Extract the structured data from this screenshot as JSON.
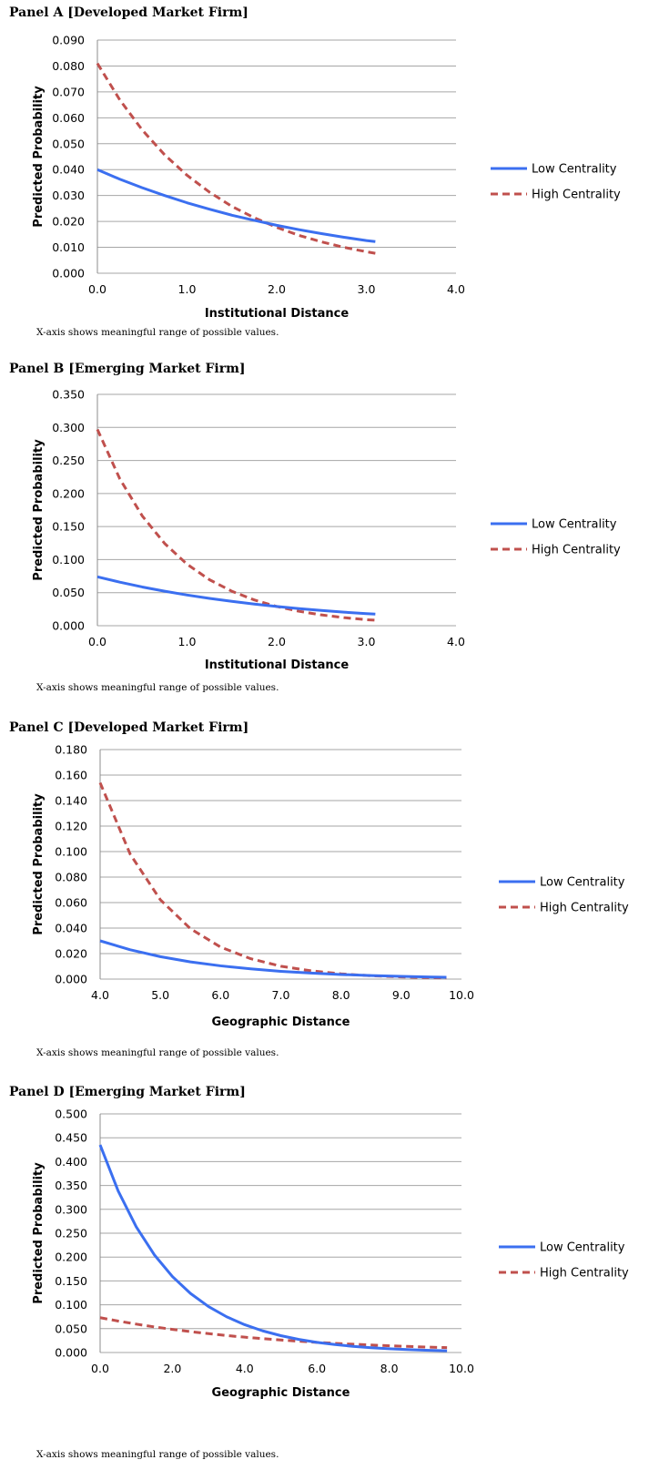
{
  "colors": {
    "low": "#3b6ff0",
    "high": "#c0504d",
    "grid": "#a6a6a6"
  },
  "chart_data": [
    {
      "type": "line",
      "title": "Panel A [Developed Market Firm]",
      "xlabel": "Institutional Distance",
      "ylabel": "Predicted Probability",
      "note": "X-axis shows meaningful range of possible values.",
      "xlim": [
        0,
        4
      ],
      "ylim": [
        0,
        0.09
      ],
      "xticks": [
        "0.0",
        "1.0",
        "2.0",
        "3.0",
        "4.0"
      ],
      "yticks": [
        "0.000",
        "0.010",
        "0.020",
        "0.030",
        "0.040",
        "0.050",
        "0.060",
        "0.070",
        "0.080",
        "0.090"
      ],
      "legend_position": "right",
      "series": [
        {
          "name": "Low Centrality",
          "style": "solid",
          "x": [
            0.0,
            0.25,
            0.5,
            0.75,
            1.0,
            1.25,
            1.5,
            1.75,
            2.0,
            2.25,
            2.5,
            2.75,
            3.0,
            3.1
          ],
          "y": [
            0.04,
            0.0363,
            0.033,
            0.03,
            0.0272,
            0.0247,
            0.0224,
            0.0204,
            0.0185,
            0.0168,
            0.0153,
            0.0139,
            0.0126,
            0.0122
          ]
        },
        {
          "name": "High Centrality",
          "style": "dashed",
          "x": [
            0.0,
            0.25,
            0.5,
            0.75,
            1.0,
            1.25,
            1.5,
            1.75,
            2.0,
            2.25,
            2.5,
            2.75,
            3.0,
            3.1
          ],
          "y": [
            0.081,
            0.0669,
            0.0553,
            0.0457,
            0.0378,
            0.0313,
            0.0258,
            0.0214,
            0.0177,
            0.0146,
            0.0121,
            0.01,
            0.0083,
            0.0077
          ]
        }
      ]
    },
    {
      "type": "line",
      "title": "Panel B [Emerging Market Firm]",
      "xlabel": "Institutional Distance",
      "ylabel": "Predicted Probability",
      "note": "X-axis shows meaningful range of possible values.",
      "xlim": [
        0,
        4
      ],
      "ylim": [
        0,
        0.35
      ],
      "xticks": [
        "0.0",
        "1.0",
        "2.0",
        "3.0",
        "4.0"
      ],
      "yticks": [
        "0.000",
        "0.050",
        "0.100",
        "0.150",
        "0.200",
        "0.250",
        "0.300",
        "0.350"
      ],
      "legend_position": "right",
      "series": [
        {
          "name": "Low Centrality",
          "style": "solid",
          "x": [
            0.0,
            0.25,
            0.5,
            0.75,
            1.0,
            1.25,
            1.5,
            1.75,
            2.0,
            2.25,
            2.5,
            2.75,
            3.0,
            3.1
          ],
          "y": [
            0.074,
            0.0659,
            0.0586,
            0.0522,
            0.0464,
            0.0413,
            0.0368,
            0.0327,
            0.0291,
            0.0259,
            0.0231,
            0.0205,
            0.0183,
            0.0175
          ]
        },
        {
          "name": "High Centrality",
          "style": "dashed",
          "x": [
            0.0,
            0.25,
            0.5,
            0.75,
            1.0,
            1.25,
            1.5,
            1.75,
            2.0,
            2.25,
            2.5,
            2.75,
            3.0,
            3.1
          ],
          "y": [
            0.297,
            0.2222,
            0.1662,
            0.1244,
            0.093,
            0.0696,
            0.0521,
            0.039,
            0.0291,
            0.0218,
            0.0163,
            0.0122,
            0.0091,
            0.0083
          ]
        }
      ]
    },
    {
      "type": "line",
      "title": "Panel C [Developed Market Firm]",
      "xlabel": "Geographic Distance",
      "ylabel": "Predicted Probability",
      "note": "X-axis shows meaningful range of possible values.",
      "xlim": [
        4,
        10
      ],
      "ylim": [
        0,
        0.18
      ],
      "xticks": [
        "4.0",
        "5.0",
        "6.0",
        "7.0",
        "8.0",
        "9.0",
        "10.0"
      ],
      "yticks": [
        "0.000",
        "0.020",
        "0.040",
        "0.060",
        "0.080",
        "0.100",
        "0.120",
        "0.140",
        "0.160",
        "0.180"
      ],
      "legend_position": "right",
      "series": [
        {
          "name": "Low Centrality",
          "style": "solid",
          "x": [
            4.0,
            4.5,
            5.0,
            5.5,
            6.0,
            6.5,
            7.0,
            7.5,
            8.0,
            8.5,
            9.0,
            9.5,
            9.75
          ],
          "y": [
            0.03,
            0.023,
            0.0176,
            0.0135,
            0.0104,
            0.008,
            0.0061,
            0.0047,
            0.0036,
            0.0028,
            0.0021,
            0.0016,
            0.0014
          ]
        },
        {
          "name": "High Centrality",
          "style": "dashed",
          "x": [
            4.0,
            4.5,
            5.0,
            5.5,
            6.0,
            6.5,
            7.0,
            7.5,
            8.0,
            8.5,
            9.0,
            9.5,
            9.75
          ],
          "y": [
            0.154,
            0.0979,
            0.0622,
            0.0395,
            0.0251,
            0.016,
            0.0101,
            0.0065,
            0.0041,
            0.0026,
            0.0017,
            0.0011,
            0.0009
          ]
        }
      ]
    },
    {
      "type": "line",
      "title": "Panel D [Emerging Market Firm]",
      "xlabel": "Geographic Distance",
      "ylabel": "Predicted Probability",
      "note": "X-axis  shows meaningful range of possible values.",
      "xlim": [
        0,
        10
      ],
      "ylim": [
        0,
        0.5
      ],
      "xticks": [
        "0.0",
        "2.0",
        "4.0",
        "6.0",
        "8.0",
        "10.0"
      ],
      "yticks": [
        "0.000",
        "0.050",
        "0.100",
        "0.150",
        "0.200",
        "0.250",
        "0.300",
        "0.350",
        "0.400",
        "0.450",
        "0.500"
      ],
      "legend_position": "right",
      "series": [
        {
          "name": "Low Centrality",
          "style": "solid",
          "x": [
            0.0,
            0.5,
            1.0,
            1.5,
            2.0,
            2.5,
            3.0,
            3.5,
            4.0,
            4.5,
            5.0,
            5.5,
            6.0,
            6.5,
            7.0,
            7.5,
            8.0,
            8.5,
            9.0,
            9.5,
            9.6
          ],
          "y": [
            0.435,
            0.3384,
            0.2632,
            0.2047,
            0.1592,
            0.1238,
            0.0963,
            0.0749,
            0.0583,
            0.0453,
            0.0353,
            0.0274,
            0.0213,
            0.0166,
            0.0129,
            0.01,
            0.0078,
            0.0061,
            0.0047,
            0.0037,
            0.0035
          ]
        },
        {
          "name": "High Centrality",
          "style": "dashed",
          "x": [
            0.0,
            0.5,
            1.0,
            1.5,
            2.0,
            2.5,
            3.0,
            3.5,
            4.0,
            4.5,
            5.0,
            5.5,
            6.0,
            6.5,
            7.0,
            7.5,
            8.0,
            8.5,
            9.0,
            9.5,
            9.6
          ],
          "y": [
            0.073,
            0.0659,
            0.0595,
            0.0537,
            0.0485,
            0.0437,
            0.0395,
            0.0356,
            0.0321,
            0.029,
            0.0262,
            0.0236,
            0.0213,
            0.0192,
            0.0174,
            0.0157,
            0.0141,
            0.0128,
            0.0115,
            0.0104,
            0.0102
          ]
        }
      ]
    }
  ]
}
